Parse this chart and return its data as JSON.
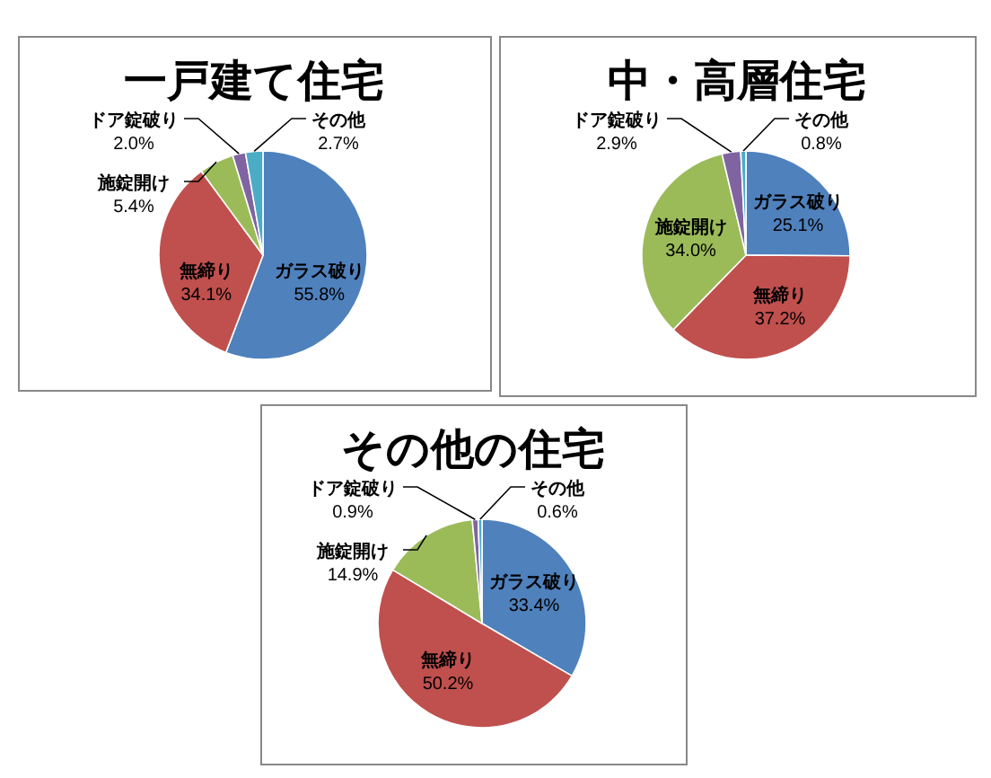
{
  "chart_data": [
    {
      "type": "pie",
      "title": "一戸建て住宅",
      "categories": [
        "ガラス破り",
        "無締り",
        "施錠開け",
        "ドア錠破り",
        "その他"
      ],
      "values": [
        55.8,
        34.1,
        5.4,
        2.0,
        2.7
      ],
      "value_labels": [
        "55.8%",
        "34.1%",
        "5.4%",
        "2.0%",
        "2.7%"
      ],
      "colors": [
        "#4f81bd",
        "#c0504d",
        "#9bbb59",
        "#8064a2",
        "#4bacc6"
      ]
    },
    {
      "type": "pie",
      "title": "中・高層住宅",
      "categories": [
        "ガラス破り",
        "無締り",
        "施錠開け",
        "ドア錠破り",
        "その他"
      ],
      "values": [
        25.1,
        37.2,
        34.0,
        2.9,
        0.8
      ],
      "value_labels": [
        "25.1%",
        "37.2%",
        "34.0%",
        "2.9%",
        "0.8%"
      ],
      "colors": [
        "#4f81bd",
        "#c0504d",
        "#9bbb59",
        "#8064a2",
        "#4bacc6"
      ]
    },
    {
      "type": "pie",
      "title": "その他の住宅",
      "categories": [
        "ガラス破り",
        "無締り",
        "施錠開け",
        "ドア錠破り",
        "その他"
      ],
      "values": [
        33.4,
        50.2,
        14.9,
        0.9,
        0.6
      ],
      "value_labels": [
        "33.4%",
        "50.2%",
        "14.9%",
        "0.9%",
        "0.6%"
      ],
      "colors": [
        "#4f81bd",
        "#c0504d",
        "#9bbb59",
        "#8064a2",
        "#4bacc6"
      ]
    }
  ]
}
